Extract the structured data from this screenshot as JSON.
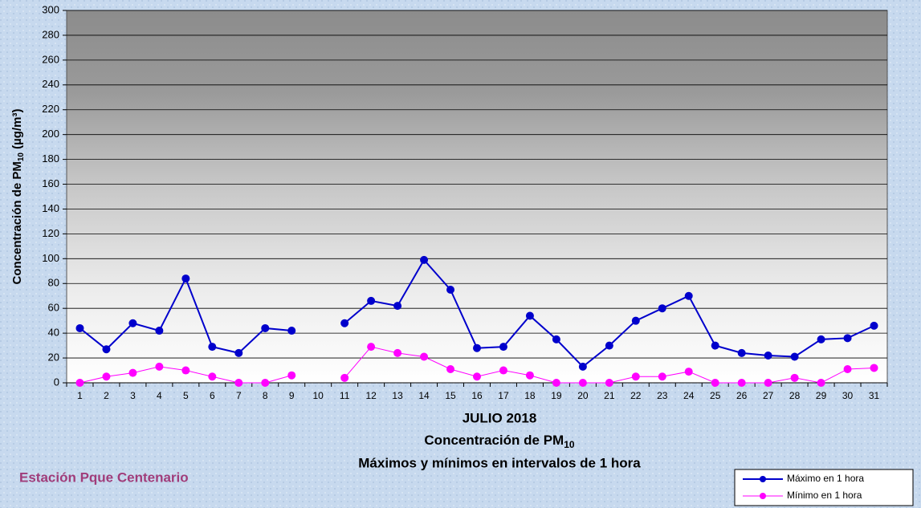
{
  "chart_data": {
    "type": "line",
    "title_lines": [
      "JULIO 2018",
      "Concentración de PM",
      "Máximos y mínimos en intervalos de 1 hora"
    ],
    "title_sub": "10",
    "y_label": "Concentración de PM",
    "y_label_sub": "10",
    "y_label_unit": " (µg/m³)",
    "station": "Estación Pque Centenario",
    "categories": [
      "1",
      "2",
      "3",
      "4",
      "5",
      "6",
      "7",
      "8",
      "9",
      "10",
      "11",
      "12",
      "13",
      "14",
      "15",
      "16",
      "17",
      "18",
      "19",
      "20",
      "21",
      "22",
      "23",
      "24",
      "25",
      "26",
      "27",
      "28",
      "29",
      "30",
      "31"
    ],
    "series": [
      {
        "name": "Máximo en 1 hora",
        "color": "#0000cc",
        "values": [
          44,
          27,
          48,
          42,
          84,
          29,
          24,
          44,
          42,
          null,
          48,
          66,
          62,
          99,
          75,
          28,
          29,
          54,
          35,
          13,
          30,
          50,
          60,
          70,
          30,
          24,
          22,
          21,
          35,
          36,
          46
        ]
      },
      {
        "name": "Mínimo en 1 hora",
        "color": "#ff00ff",
        "values": [
          0,
          5,
          8,
          13,
          10,
          5,
          0,
          0,
          6,
          null,
          4,
          29,
          24,
          21,
          11,
          5,
          10,
          6,
          0,
          0,
          0,
          5,
          5,
          9,
          0,
          0,
          0,
          4,
          0,
          11,
          12
        ]
      }
    ],
    "ylim": [
      0,
      300
    ],
    "yticks": [
      0,
      20,
      40,
      60,
      80,
      100,
      120,
      140,
      160,
      180,
      200,
      220,
      240,
      260,
      280,
      300
    ],
    "grid": true
  }
}
